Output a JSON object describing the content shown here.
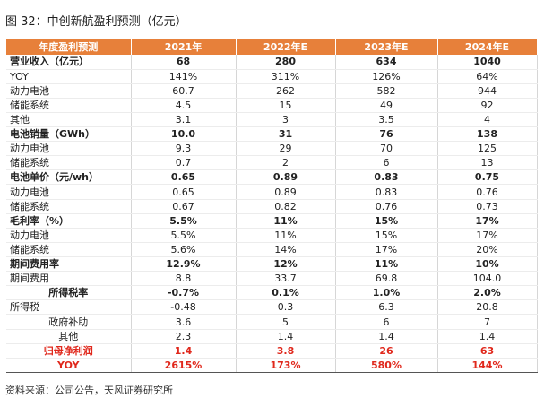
{
  "title": "图 32：中创新航盈利预测（亿元）",
  "source": "资料来源：公司公告，天风证券研究所",
  "header": [
    "年度盈利预测",
    "2021年",
    "2022年E",
    "2023年E",
    "2024年E"
  ],
  "rows": [
    {
      "label": "营业收入（亿元）",
      "values": [
        "68",
        "280",
        "634",
        "1040"
      ]
    },
    {
      "label": "YOY",
      "values": [
        "141%",
        "311%",
        "126%",
        "64%"
      ]
    },
    {
      "label": "动力电池",
      "values": [
        "60.7",
        "262",
        "582",
        "944"
      ]
    },
    {
      "label": "储能系统",
      "values": [
        "4.5",
        "15",
        "49",
        "92"
      ]
    },
    {
      "label": "其他",
      "values": [
        "3.1",
        "3",
        "3.5",
        "4"
      ]
    },
    {
      "label": "电池销量（GWh）",
      "values": [
        "10.0",
        "31",
        "76",
        "138"
      ]
    },
    {
      "label": "动力电池",
      "values": [
        "9.3",
        "29",
        "70",
        "125"
      ]
    },
    {
      "label": "储能系统",
      "values": [
        "0.7",
        "2",
        "6",
        "13"
      ]
    },
    {
      "label": "电池单价（元/wh）",
      "values": [
        "0.65",
        "0.89",
        "0.83",
        "0.75"
      ]
    },
    {
      "label": "动力电池",
      "values": [
        "0.65",
        "0.89",
        "0.83",
        "0.76"
      ]
    },
    {
      "label": "储能系统",
      "values": [
        "0.67",
        "0.82",
        "0.76",
        "0.73"
      ]
    },
    {
      "label": "毛利率（%）",
      "values": [
        "5.5%",
        "11%",
        "15%",
        "17%"
      ]
    },
    {
      "label": "动力电池",
      "values": [
        "5.5%",
        "11%",
        "15%",
        "17%"
      ]
    },
    {
      "label": "储能系统",
      "values": [
        "5.6%",
        "14%",
        "17%",
        "20%"
      ]
    },
    {
      "label": "期间费用率",
      "values": [
        "12.9%",
        "12%",
        "11%",
        "10%"
      ]
    },
    {
      "label": "期间费用",
      "values": [
        "8.8",
        "33.7",
        "69.8",
        "104.0"
      ]
    },
    {
      "label": "所得税率",
      "values": [
        "-0.7%",
        "0.1%",
        "1.0%",
        "2.0%"
      ]
    },
    {
      "label": "所得税",
      "values": [
        "-0.48",
        "0.3",
        "6.3",
        "20.8"
      ]
    },
    {
      "label": "政府补助",
      "values": [
        "3.6",
        "5",
        "6",
        "7"
      ]
    },
    {
      "label": "其他",
      "values": [
        "2.3",
        "1.4",
        "1.4",
        "1.4"
      ]
    },
    {
      "label": "归母净利润",
      "values": [
        "1.4",
        "3.8",
        "26",
        "63"
      ]
    },
    {
      "label": "YOY",
      "values": [
        "2615%",
        "173%",
        "580%",
        "144%"
      ]
    }
  ]
}
